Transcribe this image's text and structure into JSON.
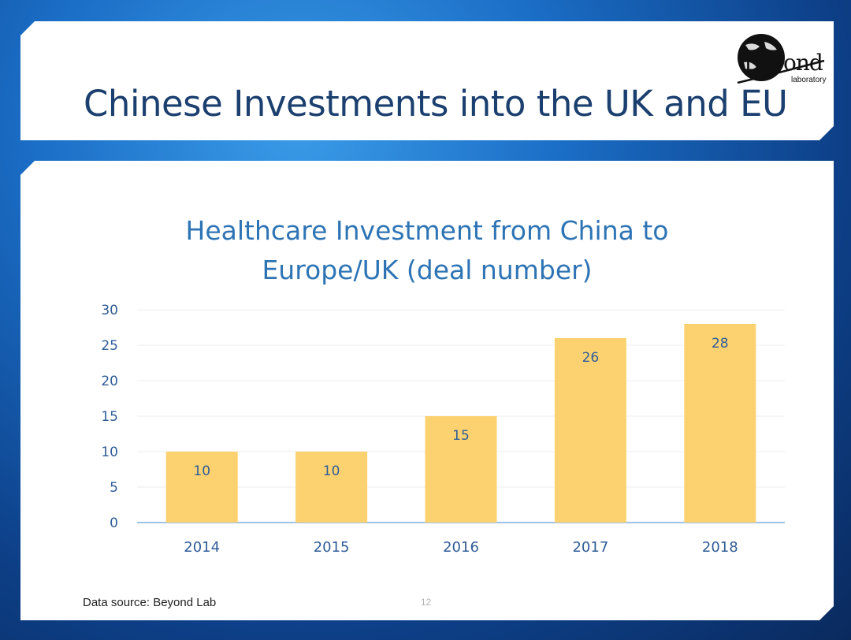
{
  "slide": {
    "title": "Chinese Investments into the UK and EU",
    "source": "Data source: Beyond Lab",
    "page_number": "12",
    "logo": {
      "word": "Beyond",
      "sub": "laboratory"
    }
  },
  "colors": {
    "bar": "#fcd271",
    "title": "#2e74b5",
    "axis_text": "#2f5c97",
    "baseline": "#9dc3e6",
    "grid": "#eeeeee"
  },
  "chart_data": {
    "type": "bar",
    "title": [
      "Healthcare  Investment from China to",
      "Europe/UK (deal number)"
    ],
    "categories": [
      "2014",
      "2015",
      "2016",
      "2017",
      "2018"
    ],
    "values": [
      10,
      10,
      15,
      26,
      28
    ],
    "data_labels": [
      "10",
      "10",
      "15",
      "26",
      "28"
    ],
    "ylim": [
      0,
      30
    ],
    "yticks": [
      0,
      5,
      10,
      15,
      20,
      25,
      30
    ],
    "grid": true,
    "legend": "none",
    "xlabel": "",
    "ylabel": ""
  }
}
